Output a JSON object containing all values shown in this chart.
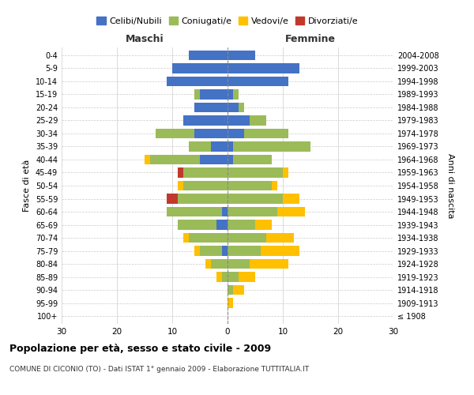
{
  "age_groups": [
    "100+",
    "95-99",
    "90-94",
    "85-89",
    "80-84",
    "75-79",
    "70-74",
    "65-69",
    "60-64",
    "55-59",
    "50-54",
    "45-49",
    "40-44",
    "35-39",
    "30-34",
    "25-29",
    "20-24",
    "15-19",
    "10-14",
    "5-9",
    "0-4"
  ],
  "birth_years": [
    "≤ 1908",
    "1909-1913",
    "1914-1918",
    "1919-1923",
    "1924-1928",
    "1929-1933",
    "1934-1938",
    "1939-1943",
    "1944-1948",
    "1949-1953",
    "1954-1958",
    "1959-1963",
    "1964-1968",
    "1969-1973",
    "1974-1978",
    "1979-1983",
    "1984-1988",
    "1989-1993",
    "1994-1998",
    "1999-2003",
    "2004-2008"
  ],
  "colors": {
    "celibe": "#4472C4",
    "coniugato": "#9BBB59",
    "vedovo": "#FFC000",
    "divorziato": "#C0392B"
  },
  "maschi": {
    "celibe": [
      0,
      0,
      0,
      0,
      0,
      1,
      0,
      2,
      1,
      0,
      0,
      0,
      5,
      3,
      6,
      8,
      6,
      5,
      11,
      10,
      7
    ],
    "coniugato": [
      0,
      0,
      0,
      1,
      3,
      4,
      7,
      7,
      10,
      9,
      8,
      8,
      9,
      4,
      7,
      0,
      0,
      1,
      0,
      0,
      0
    ],
    "vedovo": [
      0,
      0,
      0,
      1,
      1,
      1,
      1,
      0,
      0,
      0,
      1,
      0,
      1,
      0,
      0,
      0,
      0,
      0,
      0,
      0,
      0
    ],
    "divorziato": [
      0,
      0,
      0,
      0,
      0,
      0,
      0,
      0,
      0,
      2,
      0,
      1,
      0,
      0,
      0,
      0,
      0,
      0,
      0,
      0,
      0
    ]
  },
  "femmine": {
    "nubile": [
      0,
      0,
      0,
      0,
      0,
      0,
      0,
      0,
      0,
      0,
      0,
      0,
      1,
      1,
      3,
      4,
      2,
      1,
      11,
      13,
      5
    ],
    "coniugata": [
      0,
      0,
      1,
      2,
      4,
      6,
      7,
      5,
      9,
      10,
      8,
      10,
      7,
      14,
      8,
      3,
      1,
      1,
      0,
      0,
      0
    ],
    "vedova": [
      0,
      1,
      2,
      3,
      7,
      7,
      5,
      3,
      5,
      3,
      1,
      1,
      0,
      0,
      0,
      0,
      0,
      0,
      0,
      0,
      0
    ],
    "divorziata": [
      0,
      0,
      0,
      0,
      0,
      0,
      0,
      0,
      0,
      0,
      0,
      0,
      0,
      0,
      0,
      0,
      0,
      0,
      0,
      0,
      0
    ]
  },
  "xlim": [
    -30,
    30
  ],
  "xticks": [
    -30,
    -20,
    -10,
    0,
    10,
    20,
    30
  ],
  "xticklabels": [
    "30",
    "20",
    "10",
    "0",
    "10",
    "20",
    "30"
  ],
  "title": "Popolazione per età, sesso e stato civile - 2009",
  "subtitle": "COMUNE DI CICONIO (TO) - Dati ISTAT 1° gennaio 2009 - Elaborazione TUTTITALIA.IT",
  "ylabel_left": "Fasce di età",
  "ylabel_right": "Anni di nascita",
  "label_maschi": "Maschi",
  "label_femmine": "Femmine",
  "legend_labels": [
    "Celibi/Nubili",
    "Coniugati/e",
    "Vedovi/e",
    "Divorziati/e"
  ],
  "bg_color": "#ffffff",
  "grid_color": "#cccccc",
  "bar_height": 0.75
}
